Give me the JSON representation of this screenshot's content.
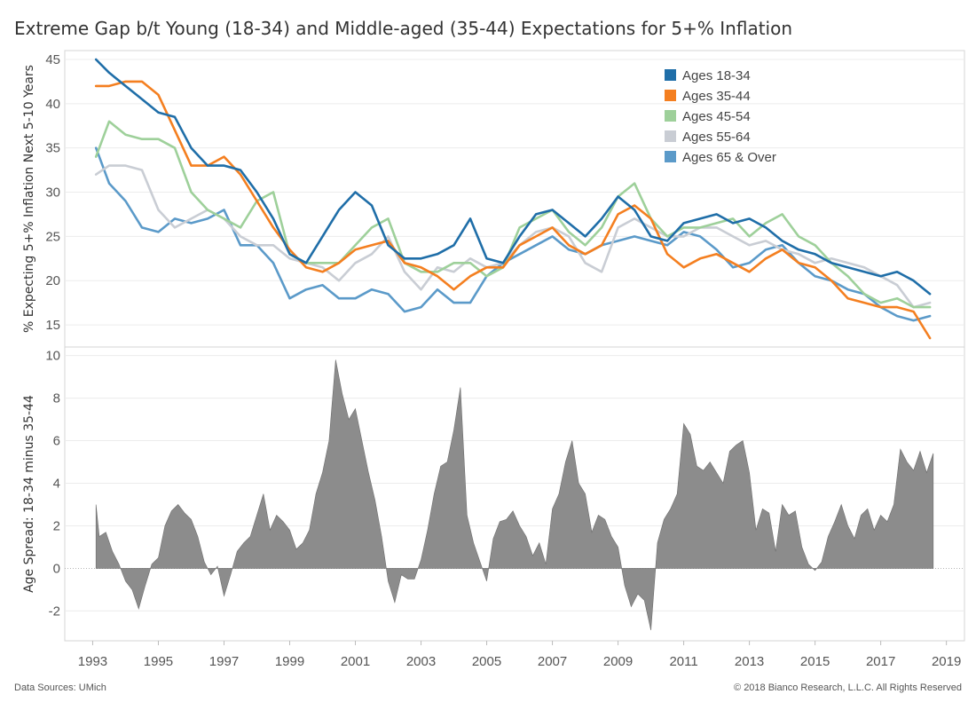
{
  "title": "Extreme Gap b/t Young (18-34) and Middle-aged (35-44) Expectations for 5+% Inflation",
  "footer": {
    "source": "Data Sources: UMich",
    "copyright": "© 2018 Bianco Research, L.L.C. All Rights Reserved"
  },
  "chart_data": [
    {
      "type": "line",
      "ylabel": "% Expecting 5+% Inflation Next 5-10 Years",
      "ylim": [
        12.5,
        46
      ],
      "yticks": [
        15,
        20,
        25,
        30,
        35,
        40,
        45
      ],
      "legend_position": "top-right",
      "x": [
        1993.1,
        1993.5,
        1994.0,
        1994.5,
        1995.0,
        1995.5,
        1996.0,
        1996.5,
        1997.0,
        1997.5,
        1998.0,
        1998.5,
        1999.0,
        1999.5,
        2000.0,
        2000.5,
        2001.0,
        2001.5,
        2002.0,
        2002.5,
        2003.0,
        2003.5,
        2004.0,
        2004.5,
        2005.0,
        2005.5,
        2006.0,
        2006.5,
        2007.0,
        2007.5,
        2008.0,
        2008.5,
        2009.0,
        2009.5,
        2010.0,
        2010.5,
        2011.0,
        2011.5,
        2012.0,
        2012.5,
        2013.0,
        2013.5,
        2014.0,
        2014.5,
        2015.0,
        2015.5,
        2016.0,
        2016.5,
        2017.0,
        2017.5,
        2018.0,
        2018.5
      ],
      "series": [
        {
          "name": "Ages 18-34",
          "color": "#1f6ea8",
          "values": [
            45,
            43.5,
            42,
            40.5,
            39,
            38.5,
            35,
            33,
            33,
            32.5,
            30,
            27,
            23,
            22,
            25,
            28,
            30,
            28.5,
            24,
            22.5,
            22.5,
            23,
            24,
            27,
            22.5,
            22,
            25,
            27.5,
            28,
            26.5,
            25,
            27,
            29.5,
            28,
            25,
            24.5,
            26.5,
            27,
            27.5,
            26.5,
            27,
            26,
            24.5,
            23.5,
            23,
            22,
            21.5,
            21,
            20.5,
            21,
            20,
            18.5
          ]
        },
        {
          "name": "Ages 35-44",
          "color": "#f47f20",
          "values": [
            42,
            42,
            42.5,
            42.5,
            41,
            37,
            33,
            33,
            34,
            32,
            29,
            26,
            23.5,
            21.5,
            21,
            22,
            23.5,
            24,
            24.5,
            22,
            21.5,
            20.5,
            19,
            20.5,
            21.5,
            21.5,
            24,
            25,
            26,
            24,
            23,
            24,
            27.5,
            28.5,
            27,
            23,
            21.5,
            22.5,
            23,
            22,
            21,
            22.5,
            23.5,
            22,
            21.5,
            20,
            18,
            17.5,
            17,
            17,
            16.5,
            13.5
          ]
        },
        {
          "name": "Ages 45-54",
          "color": "#9ed09a",
          "values": [
            34,
            38,
            36.5,
            36,
            36,
            35,
            30,
            28,
            27,
            26,
            29,
            30,
            23,
            22,
            22,
            22,
            24,
            26,
            27,
            22,
            21,
            21,
            22,
            22,
            20.5,
            21.5,
            26,
            27,
            28,
            25.5,
            24,
            26,
            29.5,
            31,
            27,
            25,
            26,
            26,
            26.5,
            27,
            25,
            26.5,
            27.5,
            25,
            24,
            22,
            20.5,
            18.5,
            17.5,
            18,
            17,
            17
          ]
        },
        {
          "name": "Ages 55-64",
          "color": "#c9cdd4",
          "values": [
            32,
            33,
            33,
            32.5,
            28,
            26,
            27,
            28,
            27,
            25,
            24,
            24,
            22.5,
            22,
            21.5,
            20,
            22,
            23,
            25,
            21,
            19,
            21.5,
            21,
            22.5,
            21.5,
            22,
            24,
            25.5,
            26,
            25,
            22,
            21,
            26,
            27,
            26,
            25,
            25,
            26,
            26,
            25,
            24,
            24.5,
            23.5,
            23,
            22,
            22.5,
            22,
            21.5,
            20.5,
            19.5,
            17,
            17.5
          ]
        },
        {
          "name": "Ages 65 & Over",
          "color": "#5b9ac9",
          "values": [
            35,
            31,
            29,
            26,
            25.5,
            27,
            26.5,
            27,
            28,
            24,
            24,
            22,
            18,
            19,
            19.5,
            18,
            18,
            19,
            18.5,
            16.5,
            17,
            19,
            17.5,
            17.5,
            20.5,
            22,
            23,
            24,
            25,
            23.5,
            23,
            24,
            24.5,
            25,
            24.5,
            24,
            25.5,
            25,
            23.5,
            21.5,
            22,
            23.5,
            24,
            22,
            20.5,
            20,
            19,
            18.5,
            17,
            16,
            15.5,
            16
          ]
        }
      ]
    },
    {
      "type": "area",
      "ylabel": "Age Spread: 18-34 minus 35-44",
      "ylim": [
        -3.4,
        10.4
      ],
      "yticks": [
        -2,
        0,
        2,
        4,
        6,
        8,
        10
      ],
      "color": "#8c8c8c",
      "x": [
        1993.1,
        1993.2,
        1993.4,
        1993.6,
        1993.8,
        1994.0,
        1994.2,
        1994.4,
        1994.6,
        1994.8,
        1995.0,
        1995.2,
        1995.4,
        1995.6,
        1995.8,
        1996.0,
        1996.2,
        1996.4,
        1996.6,
        1996.8,
        1997.0,
        1997.2,
        1997.4,
        1997.6,
        1997.8,
        1998.0,
        1998.2,
        1998.4,
        1998.6,
        1998.8,
        1999.0,
        1999.2,
        1999.4,
        1999.6,
        1999.8,
        2000.0,
        2000.2,
        2000.4,
        2000.6,
        2000.8,
        2001.0,
        2001.2,
        2001.4,
        2001.6,
        2001.8,
        2002.0,
        2002.2,
        2002.4,
        2002.6,
        2002.8,
        2003.0,
        2003.2,
        2003.4,
        2003.6,
        2003.8,
        2004.0,
        2004.2,
        2004.4,
        2004.6,
        2004.8,
        2005.0,
        2005.2,
        2005.4,
        2005.6,
        2005.8,
        2006.0,
        2006.2,
        2006.4,
        2006.6,
        2006.8,
        2007.0,
        2007.2,
        2007.4,
        2007.6,
        2007.8,
        2008.0,
        2008.2,
        2008.4,
        2008.6,
        2008.8,
        2009.0,
        2009.2,
        2009.4,
        2009.6,
        2009.8,
        2010.0,
        2010.2,
        2010.4,
        2010.6,
        2010.8,
        2011.0,
        2011.2,
        2011.4,
        2011.6,
        2011.8,
        2012.0,
        2012.2,
        2012.4,
        2012.6,
        2012.8,
        2013.0,
        2013.2,
        2013.4,
        2013.6,
        2013.8,
        2014.0,
        2014.2,
        2014.4,
        2014.6,
        2014.8,
        2015.0,
        2015.2,
        2015.4,
        2015.6,
        2015.8,
        2016.0,
        2016.2,
        2016.4,
        2016.6,
        2016.8,
        2017.0,
        2017.2,
        2017.4,
        2017.6,
        2017.8,
        2018.0,
        2018.2,
        2018.4,
        2018.6
      ],
      "values": [
        3,
        1.5,
        1.7,
        0.8,
        0.2,
        -0.6,
        -1.0,
        -1.9,
        -0.8,
        0.2,
        0.5,
        2.0,
        2.7,
        3.0,
        2.6,
        2.3,
        1.5,
        0.3,
        -0.3,
        0.1,
        -1.3,
        -0.3,
        0.8,
        1.2,
        1.5,
        2.5,
        3.5,
        1.8,
        2.5,
        2.2,
        1.8,
        0.9,
        1.2,
        1.8,
        3.5,
        4.5,
        6.0,
        9.8,
        8.2,
        7.0,
        7.5,
        6.0,
        4.5,
        3.2,
        1.5,
        -0.6,
        -1.6,
        -0.3,
        -0.5,
        -0.5,
        0.4,
        1.8,
        3.5,
        4.8,
        5.0,
        6.5,
        8.5,
        2.5,
        1.2,
        0.3,
        -0.6,
        1.4,
        2.2,
        2.3,
        2.7,
        2.0,
        1.5,
        0.6,
        1.2,
        0.2,
        2.8,
        3.5,
        5.0,
        6.0,
        4.0,
        3.5,
        1.7,
        2.5,
        2.3,
        1.5,
        1.0,
        -0.8,
        -1.8,
        -1.2,
        -1.5,
        -2.9,
        1.2,
        2.3,
        2.8,
        3.5,
        6.8,
        6.3,
        4.8,
        4.6,
        5.0,
        4.5,
        4.0,
        5.5,
        5.8,
        6.0,
        4.5,
        1.8,
        2.8,
        2.6,
        0.8,
        3.0,
        2.5,
        2.7,
        1.0,
        0.2,
        -0.1,
        0.3,
        1.5,
        2.2,
        3.0,
        2.0,
        1.4,
        2.5,
        2.8,
        1.8,
        2.5,
        2.2,
        3.0,
        5.6,
        5.0,
        4.6,
        5.5,
        4.5,
        5.4
      ]
    }
  ],
  "x_axis": {
    "tick_labels": [
      "1993",
      "1995",
      "1997",
      "1999",
      "2001",
      "2003",
      "2005",
      "2007",
      "2009",
      "2011",
      "2013",
      "2015",
      "2017",
      "2019"
    ],
    "tick_values": [
      1993,
      1995,
      1997,
      1999,
      2001,
      2003,
      2005,
      2007,
      2009,
      2011,
      2013,
      2015,
      2017,
      2019
    ],
    "range": [
      1992.15,
      2019.55
    ]
  }
}
